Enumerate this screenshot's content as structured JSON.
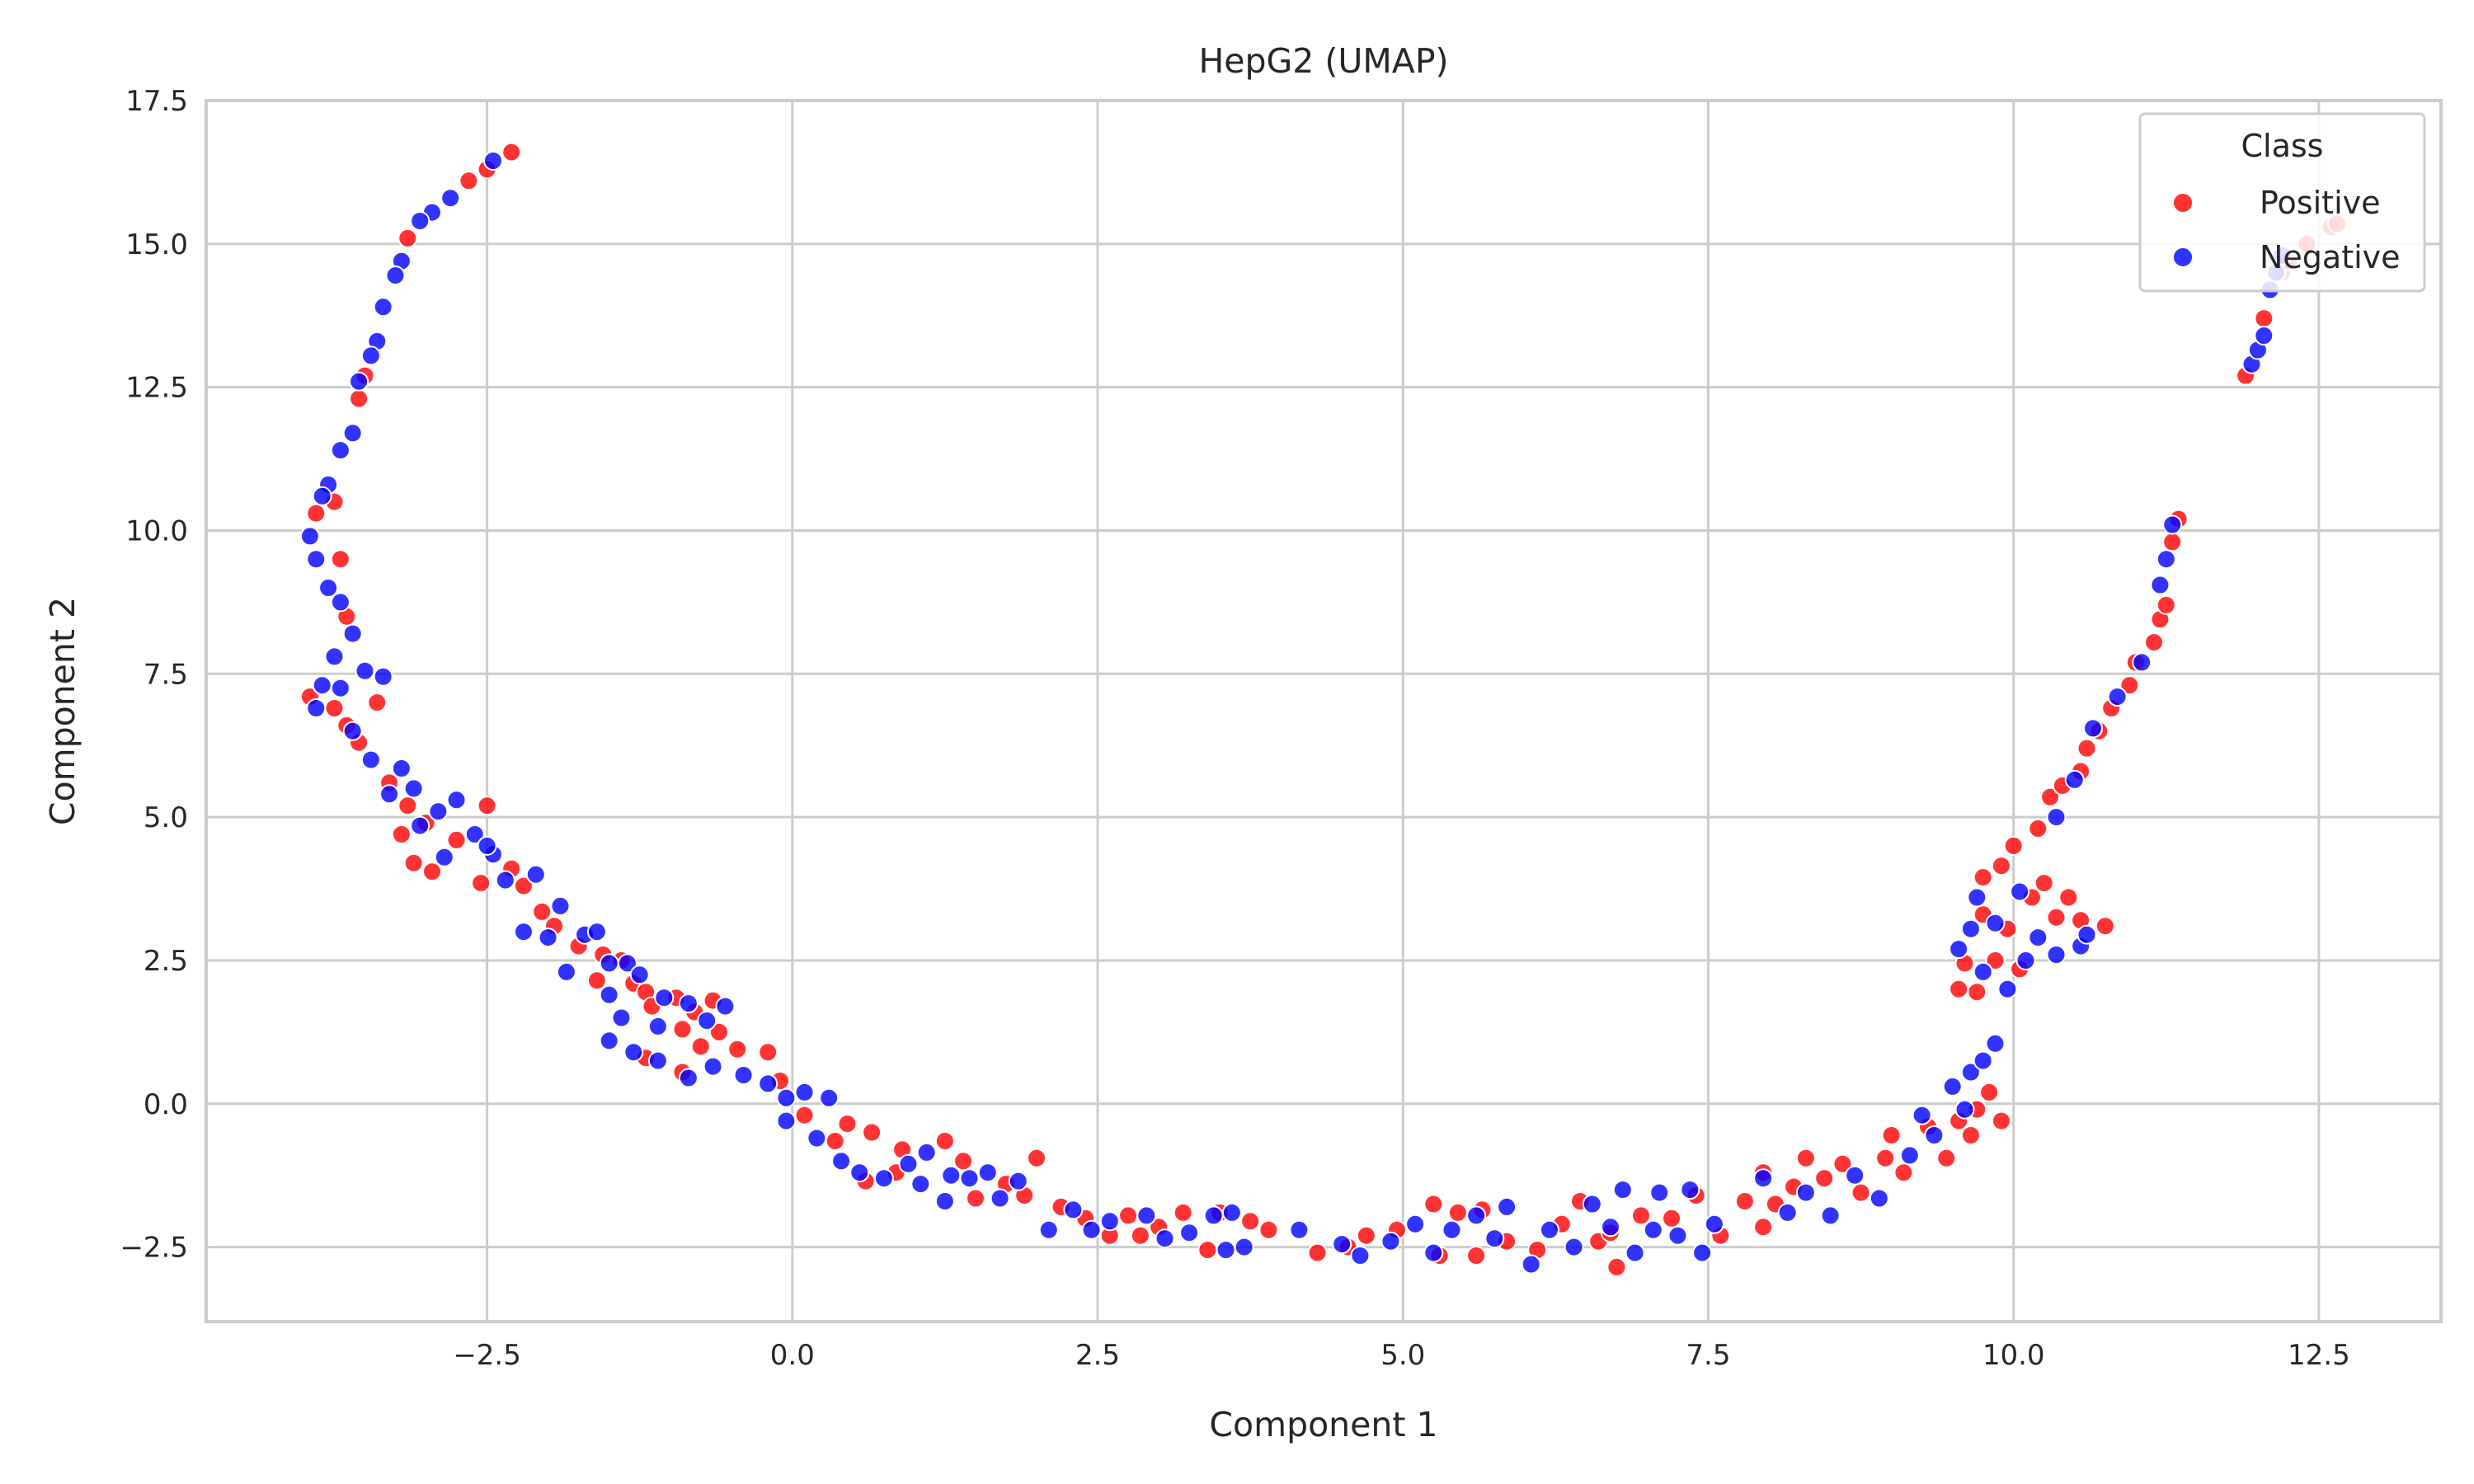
{
  "chart_data": {
    "type": "scatter",
    "title": "HepG2 (UMAP)",
    "xlabel": "Component 1",
    "ylabel": "Component 2",
    "xlim": [
      -4.8,
      13.5
    ],
    "ylim": [
      -3.8,
      17.5
    ],
    "xticks": [
      -2.5,
      0.0,
      2.5,
      5.0,
      7.5,
      10.0,
      12.5
    ],
    "xtick_labels": [
      "−2.5",
      "0.0",
      "2.5",
      "5.0",
      "7.5",
      "10.0",
      "12.5"
    ],
    "yticks": [
      -2.5,
      0.0,
      2.5,
      5.0,
      7.5,
      10.0,
      12.5,
      15.0,
      17.5
    ],
    "ytick_labels": [
      "−2.5",
      "0.0",
      "2.5",
      "5.0",
      "7.5",
      "10.0",
      "12.5",
      "15.0",
      "17.5"
    ],
    "grid": true,
    "legend": {
      "title": "Class",
      "position": "top-right"
    },
    "series": [
      {
        "name": "Positive",
        "color": "#ff0000",
        "points": [
          [
            -2.3,
            16.6
          ],
          [
            -2.5,
            16.3
          ],
          [
            -2.65,
            16.1
          ],
          [
            -3.15,
            15.1
          ],
          [
            -3.55,
            12.3
          ],
          [
            -3.5,
            12.7
          ],
          [
            -3.9,
            10.3
          ],
          [
            -3.75,
            10.5
          ],
          [
            -3.7,
            9.5
          ],
          [
            -3.65,
            8.5
          ],
          [
            -3.95,
            7.1
          ],
          [
            -3.75,
            6.9
          ],
          [
            -3.4,
            7.0
          ],
          [
            -3.55,
            6.3
          ],
          [
            -3.65,
            6.6
          ],
          [
            -3.3,
            5.6
          ],
          [
            -3.15,
            5.2
          ],
          [
            -3.0,
            4.9
          ],
          [
            -3.2,
            4.7
          ],
          [
            -2.75,
            4.6
          ],
          [
            -3.1,
            4.2
          ],
          [
            -2.95,
            4.05
          ],
          [
            -2.55,
            3.85
          ],
          [
            -2.5,
            5.2
          ],
          [
            -2.3,
            4.1
          ],
          [
            -2.2,
            3.8
          ],
          [
            -2.05,
            3.35
          ],
          [
            -1.95,
            3.1
          ],
          [
            -1.75,
            2.75
          ],
          [
            -1.55,
            2.6
          ],
          [
            -1.4,
            2.5
          ],
          [
            -1.3,
            2.1
          ],
          [
            -1.6,
            2.15
          ],
          [
            -1.2,
            1.95
          ],
          [
            -1.15,
            1.7
          ],
          [
            -0.95,
            1.85
          ],
          [
            -0.8,
            1.6
          ],
          [
            -0.65,
            1.8
          ],
          [
            -0.9,
            1.3
          ],
          [
            -0.6,
            1.25
          ],
          [
            -0.75,
            1.0
          ],
          [
            -0.45,
            0.95
          ],
          [
            -0.2,
            0.9
          ],
          [
            -1.2,
            0.8
          ],
          [
            -0.9,
            0.55
          ],
          [
            -0.1,
            0.4
          ],
          [
            0.1,
            -0.2
          ],
          [
            0.35,
            -0.65
          ],
          [
            0.45,
            -0.35
          ],
          [
            0.65,
            -0.5
          ],
          [
            0.9,
            -0.8
          ],
          [
            0.6,
            -1.35
          ],
          [
            0.85,
            -1.2
          ],
          [
            1.25,
            -0.65
          ],
          [
            1.4,
            -1.0
          ],
          [
            1.5,
            -1.65
          ],
          [
            1.75,
            -1.4
          ],
          [
            2.0,
            -0.95
          ],
          [
            1.9,
            -1.6
          ],
          [
            2.2,
            -1.8
          ],
          [
            2.4,
            -2.0
          ],
          [
            2.6,
            -2.3
          ],
          [
            2.75,
            -1.95
          ],
          [
            2.85,
            -2.3
          ],
          [
            3.0,
            -2.15
          ],
          [
            3.2,
            -1.9
          ],
          [
            3.5,
            -1.9
          ],
          [
            3.75,
            -2.05
          ],
          [
            3.9,
            -2.2
          ],
          [
            3.4,
            -2.55
          ],
          [
            4.3,
            -2.6
          ],
          [
            4.55,
            -2.5
          ],
          [
            4.7,
            -2.3
          ],
          [
            4.95,
            -2.2
          ],
          [
            5.25,
            -1.75
          ],
          [
            5.45,
            -1.9
          ],
          [
            5.65,
            -1.85
          ],
          [
            5.6,
            -2.65
          ],
          [
            5.3,
            -2.65
          ],
          [
            5.85,
            -2.4
          ],
          [
            6.1,
            -2.55
          ],
          [
            6.3,
            -2.1
          ],
          [
            6.45,
            -1.7
          ],
          [
            6.6,
            -2.4
          ],
          [
            6.75,
            -2.85
          ],
          [
            6.7,
            -2.25
          ],
          [
            6.95,
            -1.95
          ],
          [
            7.2,
            -2.0
          ],
          [
            7.4,
            -1.6
          ],
          [
            7.6,
            -2.3
          ],
          [
            7.8,
            -1.7
          ],
          [
            7.95,
            -2.15
          ],
          [
            7.95,
            -1.2
          ],
          [
            8.05,
            -1.75
          ],
          [
            8.2,
            -1.45
          ],
          [
            8.3,
            -0.95
          ],
          [
            8.45,
            -1.3
          ],
          [
            8.6,
            -1.05
          ],
          [
            8.75,
            -1.55
          ],
          [
            8.95,
            -0.95
          ],
          [
            9.0,
            -0.55
          ],
          [
            9.1,
            -1.2
          ],
          [
            9.3,
            -0.4
          ],
          [
            9.45,
            -0.95
          ],
          [
            9.55,
            -0.3
          ],
          [
            9.65,
            -0.55
          ],
          [
            9.8,
            0.2
          ],
          [
            9.9,
            -0.3
          ],
          [
            9.7,
            -0.1
          ],
          [
            9.55,
            2.0
          ],
          [
            9.6,
            2.45
          ],
          [
            9.7,
            1.95
          ],
          [
            9.75,
            3.3
          ],
          [
            9.75,
            3.95
          ],
          [
            9.85,
            2.5
          ],
          [
            9.9,
            4.15
          ],
          [
            9.95,
            3.05
          ],
          [
            10.0,
            4.5
          ],
          [
            10.05,
            2.35
          ],
          [
            10.15,
            3.6
          ],
          [
            10.2,
            4.8
          ],
          [
            10.25,
            3.85
          ],
          [
            10.35,
            3.25
          ],
          [
            10.45,
            3.6
          ],
          [
            10.55,
            3.2
          ],
          [
            10.75,
            3.1
          ],
          [
            10.3,
            5.35
          ],
          [
            10.4,
            5.55
          ],
          [
            10.55,
            5.8
          ],
          [
            10.6,
            6.2
          ],
          [
            10.7,
            6.5
          ],
          [
            10.8,
            6.9
          ],
          [
            10.95,
            7.3
          ],
          [
            11.0,
            7.7
          ],
          [
            11.15,
            8.05
          ],
          [
            11.2,
            8.45
          ],
          [
            11.25,
            8.7
          ],
          [
            11.3,
            9.8
          ],
          [
            11.35,
            10.2
          ],
          [
            11.9,
            12.7
          ],
          [
            12.05,
            13.7
          ],
          [
            12.2,
            14.5
          ],
          [
            12.4,
            15.0
          ],
          [
            12.6,
            15.3
          ],
          [
            12.65,
            15.35
          ],
          [
            12.25,
            14.7
          ]
        ]
      },
      {
        "name": "Negative",
        "color": "#0000ff",
        "points": [
          [
            -2.45,
            16.45
          ],
          [
            -2.8,
            15.8
          ],
          [
            -2.95,
            15.55
          ],
          [
            -3.05,
            15.4
          ],
          [
            -3.2,
            14.7
          ],
          [
            -3.25,
            14.45
          ],
          [
            -3.35,
            13.9
          ],
          [
            -3.4,
            13.3
          ],
          [
            -3.45,
            13.05
          ],
          [
            -3.55,
            12.6
          ],
          [
            -3.7,
            11.4
          ],
          [
            -3.6,
            11.7
          ],
          [
            -3.8,
            10.8
          ],
          [
            -3.85,
            10.6
          ],
          [
            -3.95,
            9.9
          ],
          [
            -3.9,
            9.5
          ],
          [
            -3.8,
            9.0
          ],
          [
            -3.7,
            8.75
          ],
          [
            -3.6,
            8.2
          ],
          [
            -3.75,
            7.8
          ],
          [
            -3.5,
            7.55
          ],
          [
            -3.35,
            7.45
          ],
          [
            -3.85,
            7.3
          ],
          [
            -3.9,
            6.9
          ],
          [
            -3.7,
            7.25
          ],
          [
            -3.6,
            6.5
          ],
          [
            -3.45,
            6.0
          ],
          [
            -3.2,
            5.85
          ],
          [
            -3.3,
            5.4
          ],
          [
            -3.1,
            5.5
          ],
          [
            -3.05,
            4.85
          ],
          [
            -2.9,
            5.1
          ],
          [
            -2.75,
            5.3
          ],
          [
            -2.6,
            4.7
          ],
          [
            -2.85,
            4.3
          ],
          [
            -2.45,
            4.35
          ],
          [
            -2.35,
            3.9
          ],
          [
            -2.5,
            4.5
          ],
          [
            -2.1,
            4.0
          ],
          [
            -2.2,
            3.0
          ],
          [
            -1.9,
            3.45
          ],
          [
            -2.0,
            2.9
          ],
          [
            -1.7,
            2.95
          ],
          [
            -1.85,
            2.3
          ],
          [
            -1.6,
            3.0
          ],
          [
            -1.5,
            2.45
          ],
          [
            -1.35,
            2.45
          ],
          [
            -1.25,
            2.25
          ],
          [
            -1.5,
            1.9
          ],
          [
            -1.05,
            1.85
          ],
          [
            -1.4,
            1.5
          ],
          [
            -1.1,
            1.35
          ],
          [
            -0.85,
            1.75
          ],
          [
            -0.55,
            1.7
          ],
          [
            -0.7,
            1.45
          ],
          [
            -1.5,
            1.1
          ],
          [
            -1.3,
            0.9
          ],
          [
            -1.1,
            0.75
          ],
          [
            -0.85,
            0.45
          ],
          [
            -0.65,
            0.65
          ],
          [
            -0.4,
            0.5
          ],
          [
            -0.2,
            0.35
          ],
          [
            -0.05,
            0.1
          ],
          [
            0.1,
            0.2
          ],
          [
            0.3,
            0.1
          ],
          [
            -0.05,
            -0.3
          ],
          [
            0.2,
            -0.6
          ],
          [
            0.4,
            -1.0
          ],
          [
            0.55,
            -1.2
          ],
          [
            0.75,
            -1.3
          ],
          [
            0.95,
            -1.05
          ],
          [
            1.05,
            -1.4
          ],
          [
            1.1,
            -0.85
          ],
          [
            1.3,
            -1.25
          ],
          [
            1.25,
            -1.7
          ],
          [
            1.45,
            -1.3
          ],
          [
            1.6,
            -1.2
          ],
          [
            1.7,
            -1.65
          ],
          [
            1.85,
            -1.35
          ],
          [
            2.1,
            -2.2
          ],
          [
            2.3,
            -1.85
          ],
          [
            2.45,
            -2.2
          ],
          [
            2.6,
            -2.05
          ],
          [
            2.9,
            -1.95
          ],
          [
            3.05,
            -2.35
          ],
          [
            3.25,
            -2.25
          ],
          [
            3.45,
            -1.95
          ],
          [
            3.55,
            -2.55
          ],
          [
            3.6,
            -1.9
          ],
          [
            3.7,
            -2.5
          ],
          [
            4.15,
            -2.2
          ],
          [
            4.5,
            -2.45
          ],
          [
            4.65,
            -2.65
          ],
          [
            4.9,
            -2.4
          ],
          [
            5.1,
            -2.1
          ],
          [
            5.25,
            -2.6
          ],
          [
            5.4,
            -2.2
          ],
          [
            5.6,
            -1.95
          ],
          [
            5.75,
            -2.35
          ],
          [
            5.85,
            -1.8
          ],
          [
            6.05,
            -2.8
          ],
          [
            6.2,
            -2.2
          ],
          [
            6.4,
            -2.5
          ],
          [
            6.55,
            -1.75
          ],
          [
            6.7,
            -2.15
          ],
          [
            6.8,
            -1.5
          ],
          [
            6.9,
            -2.6
          ],
          [
            7.05,
            -2.2
          ],
          [
            7.1,
            -1.55
          ],
          [
            7.25,
            -2.3
          ],
          [
            7.35,
            -1.5
          ],
          [
            7.45,
            -2.6
          ],
          [
            7.55,
            -2.1
          ],
          [
            7.95,
            -1.3
          ],
          [
            8.15,
            -1.9
          ],
          [
            8.3,
            -1.55
          ],
          [
            8.5,
            -1.95
          ],
          [
            8.7,
            -1.25
          ],
          [
            8.9,
            -1.65
          ],
          [
            9.15,
            -0.9
          ],
          [
            9.25,
            -0.2
          ],
          [
            9.35,
            -0.55
          ],
          [
            9.5,
            0.3
          ],
          [
            9.6,
            -0.1
          ],
          [
            9.65,
            0.55
          ],
          [
            9.75,
            0.75
          ],
          [
            9.85,
            1.05
          ],
          [
            9.55,
            2.7
          ],
          [
            9.65,
            3.05
          ],
          [
            9.7,
            3.6
          ],
          [
            9.75,
            2.3
          ],
          [
            9.85,
            3.15
          ],
          [
            9.95,
            2.0
          ],
          [
            10.05,
            3.7
          ],
          [
            10.1,
            2.5
          ],
          [
            10.2,
            2.9
          ],
          [
            10.35,
            2.6
          ],
          [
            10.55,
            2.75
          ],
          [
            10.6,
            2.95
          ],
          [
            10.35,
            5.0
          ],
          [
            10.5,
            5.65
          ],
          [
            10.65,
            6.55
          ],
          [
            10.85,
            7.1
          ],
          [
            11.05,
            7.7
          ],
          [
            11.2,
            9.05
          ],
          [
            11.25,
            9.5
          ],
          [
            11.3,
            10.1
          ],
          [
            11.95,
            12.9
          ],
          [
            12.0,
            13.15
          ],
          [
            12.05,
            13.4
          ],
          [
            12.1,
            14.2
          ],
          [
            12.15,
            14.5
          ],
          [
            12.2,
            14.8
          ]
        ]
      }
    ]
  }
}
